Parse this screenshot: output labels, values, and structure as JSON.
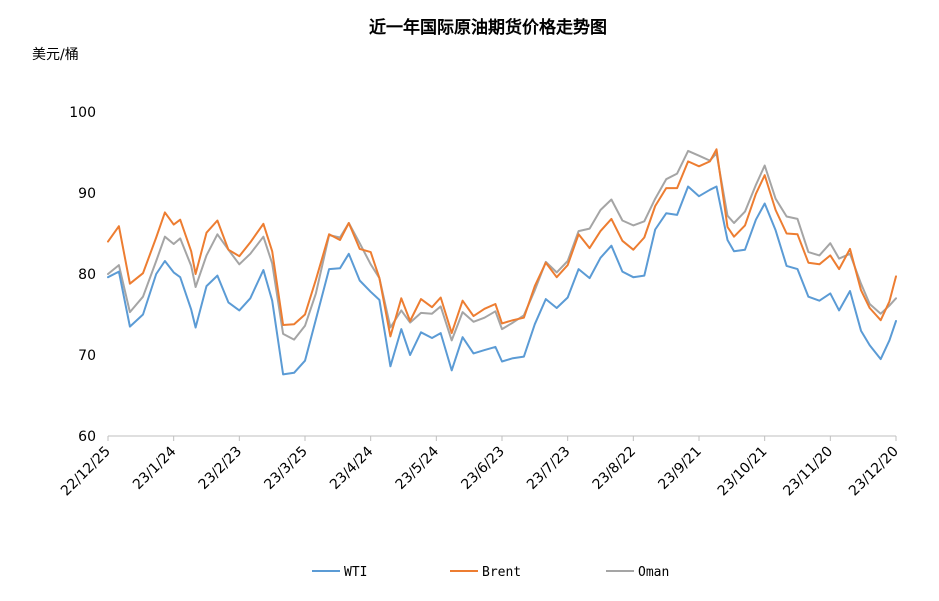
{
  "chart_data": {
    "type": "line",
    "title": "近一年国际原油期货价格走势图",
    "ylabel": "美元/桶",
    "ylim": [
      60,
      100
    ],
    "yticks": [
      60,
      70,
      80,
      90,
      100
    ],
    "x_start": "22/12/25",
    "x_end": "23/12/20",
    "xtick_labels": [
      "22/12/25",
      "23/1/24",
      "23/2/23",
      "23/3/25",
      "23/4/24",
      "23/5/24",
      "23/6/23",
      "23/7/23",
      "23/8/22",
      "23/9/21",
      "23/10/21",
      "23/11/20",
      "23/12/20"
    ],
    "legend_position": "bottom",
    "series": [
      {
        "name": "WTI",
        "color": "#5B9BD5",
        "points": [
          [
            "22/12/25",
            79.6
          ],
          [
            "22/12/30",
            80.3
          ],
          [
            "23/1/4",
            73.5
          ],
          [
            "23/1/10",
            75.0
          ],
          [
            "23/1/16",
            80.0
          ],
          [
            "23/1/20",
            81.6
          ],
          [
            "23/1/24",
            80.2
          ],
          [
            "23/1/27",
            79.6
          ],
          [
            "23/2/1",
            75.6
          ],
          [
            "23/2/3",
            73.4
          ],
          [
            "23/2/8",
            78.5
          ],
          [
            "23/2/13",
            79.8
          ],
          [
            "23/2/18",
            76.5
          ],
          [
            "23/2/23",
            75.5
          ],
          [
            "23/2/28",
            77.0
          ],
          [
            "23/3/6",
            80.5
          ],
          [
            "23/3/10",
            76.7
          ],
          [
            "23/3/15",
            67.6
          ],
          [
            "23/3/20",
            67.8
          ],
          [
            "23/3/25",
            69.3
          ],
          [
            "23/3/30",
            74.4
          ],
          [
            "23/4/5",
            80.6
          ],
          [
            "23/4/10",
            80.7
          ],
          [
            "23/4/14",
            82.5
          ],
          [
            "23/4/19",
            79.2
          ],
          [
            "23/4/24",
            77.8
          ],
          [
            "23/4/28",
            76.8
          ],
          [
            "23/5/3",
            68.6
          ],
          [
            "23/5/8",
            73.2
          ],
          [
            "23/5/12",
            70.0
          ],
          [
            "23/5/17",
            72.8
          ],
          [
            "23/5/22",
            72.1
          ],
          [
            "23/5/26",
            72.7
          ],
          [
            "23/5/31",
            68.1
          ],
          [
            "23/6/5",
            72.2
          ],
          [
            "23/6/10",
            70.2
          ],
          [
            "23/6/15",
            70.6
          ],
          [
            "23/6/20",
            71.0
          ],
          [
            "23/6/23",
            69.2
          ],
          [
            "23/6/28",
            69.6
          ],
          [
            "23/7/3",
            69.8
          ],
          [
            "23/7/8",
            73.8
          ],
          [
            "23/7/13",
            76.9
          ],
          [
            "23/7/18",
            75.8
          ],
          [
            "23/7/23",
            77.1
          ],
          [
            "23/7/28",
            80.6
          ],
          [
            "23/8/2",
            79.5
          ],
          [
            "23/8/7",
            82.0
          ],
          [
            "23/8/12",
            83.5
          ],
          [
            "23/8/17",
            80.3
          ],
          [
            "23/8/22",
            79.6
          ],
          [
            "23/8/27",
            79.8
          ],
          [
            "23/9/1",
            85.5
          ],
          [
            "23/9/6",
            87.5
          ],
          [
            "23/9/11",
            87.3
          ],
          [
            "23/9/16",
            90.8
          ],
          [
            "23/9/21",
            89.6
          ],
          [
            "23/9/26",
            90.4
          ],
          [
            "23/9/29",
            90.8
          ],
          [
            "23/10/4",
            84.2
          ],
          [
            "23/10/7",
            82.8
          ],
          [
            "23/10/12",
            83.0
          ],
          [
            "23/10/17",
            86.7
          ],
          [
            "23/10/21",
            88.7
          ],
          [
            "23/10/26",
            85.4
          ],
          [
            "23/10/31",
            81.0
          ],
          [
            "23/11/5",
            80.6
          ],
          [
            "23/11/10",
            77.2
          ],
          [
            "23/11/15",
            76.7
          ],
          [
            "23/11/20",
            77.6
          ],
          [
            "23/11/24",
            75.5
          ],
          [
            "23/11/29",
            77.9
          ],
          [
            "23/12/4",
            73.0
          ],
          [
            "23/12/8",
            71.2
          ],
          [
            "23/12/13",
            69.5
          ],
          [
            "23/12/17",
            71.8
          ],
          [
            "23/12/20",
            74.2
          ]
        ]
      },
      {
        "name": "Brent",
        "color": "#ED7D31",
        "points": [
          [
            "22/12/25",
            84.0
          ],
          [
            "22/12/30",
            85.9
          ],
          [
            "23/1/4",
            78.8
          ],
          [
            "23/1/10",
            80.1
          ],
          [
            "23/1/16",
            84.5
          ],
          [
            "23/1/20",
            87.6
          ],
          [
            "23/1/24",
            86.1
          ],
          [
            "23/1/27",
            86.7
          ],
          [
            "23/2/1",
            82.8
          ],
          [
            "23/2/3",
            80.0
          ],
          [
            "23/2/8",
            85.1
          ],
          [
            "23/2/13",
            86.6
          ],
          [
            "23/2/18",
            83.0
          ],
          [
            "23/2/23",
            82.2
          ],
          [
            "23/2/28",
            83.9
          ],
          [
            "23/3/6",
            86.2
          ],
          [
            "23/3/10",
            82.8
          ],
          [
            "23/3/15",
            73.7
          ],
          [
            "23/3/20",
            73.8
          ],
          [
            "23/3/25",
            75.0
          ],
          [
            "23/3/30",
            79.3
          ],
          [
            "23/4/5",
            84.9
          ],
          [
            "23/4/10",
            84.2
          ],
          [
            "23/4/14",
            86.3
          ],
          [
            "23/4/19",
            83.1
          ],
          [
            "23/4/24",
            82.7
          ],
          [
            "23/4/28",
            79.5
          ],
          [
            "23/5/3",
            72.3
          ],
          [
            "23/5/8",
            77.0
          ],
          [
            "23/5/12",
            74.2
          ],
          [
            "23/5/17",
            76.9
          ],
          [
            "23/5/22",
            75.9
          ],
          [
            "23/5/26",
            77.1
          ],
          [
            "23/5/31",
            72.7
          ],
          [
            "23/6/5",
            76.7
          ],
          [
            "23/6/10",
            74.8
          ],
          [
            "23/6/15",
            75.7
          ],
          [
            "23/6/20",
            76.3
          ],
          [
            "23/6/23",
            73.9
          ],
          [
            "23/6/28",
            74.3
          ],
          [
            "23/7/3",
            74.6
          ],
          [
            "23/7/8",
            78.5
          ],
          [
            "23/7/13",
            81.4
          ],
          [
            "23/7/18",
            79.6
          ],
          [
            "23/7/23",
            81.1
          ],
          [
            "23/7/28",
            84.9
          ],
          [
            "23/8/2",
            83.2
          ],
          [
            "23/8/7",
            85.3
          ],
          [
            "23/8/12",
            86.8
          ],
          [
            "23/8/17",
            84.1
          ],
          [
            "23/8/22",
            83.0
          ],
          [
            "23/8/27",
            84.5
          ],
          [
            "23/9/1",
            88.4
          ],
          [
            "23/9/6",
            90.6
          ],
          [
            "23/9/11",
            90.6
          ],
          [
            "23/9/16",
            93.9
          ],
          [
            "23/9/21",
            93.3
          ],
          [
            "23/9/26",
            93.9
          ],
          [
            "23/9/29",
            95.4
          ],
          [
            "23/10/4",
            85.8
          ],
          [
            "23/10/7",
            84.6
          ],
          [
            "23/10/12",
            86.0
          ],
          [
            "23/10/17",
            89.9
          ],
          [
            "23/10/21",
            92.2
          ],
          [
            "23/10/26",
            87.9
          ],
          [
            "23/10/31",
            85.0
          ],
          [
            "23/11/5",
            84.9
          ],
          [
            "23/11/10",
            81.4
          ],
          [
            "23/11/15",
            81.2
          ],
          [
            "23/11/20",
            82.3
          ],
          [
            "23/11/24",
            80.6
          ],
          [
            "23/11/29",
            83.1
          ],
          [
            "23/12/4",
            78.0
          ],
          [
            "23/12/8",
            75.8
          ],
          [
            "23/12/13",
            74.3
          ],
          [
            "23/12/17",
            76.6
          ],
          [
            "23/12/20",
            79.7
          ]
        ]
      },
      {
        "name": "Oman",
        "color": "#A5A5A5",
        "points": [
          [
            "22/12/25",
            80.0
          ],
          [
            "22/12/30",
            81.1
          ],
          [
            "23/1/4",
            75.3
          ],
          [
            "23/1/10",
            77.2
          ],
          [
            "23/1/16",
            81.6
          ],
          [
            "23/1/20",
            84.6
          ],
          [
            "23/1/24",
            83.7
          ],
          [
            "23/1/27",
            84.4
          ],
          [
            "23/2/1",
            81.0
          ],
          [
            "23/2/3",
            78.4
          ],
          [
            "23/2/8",
            82.3
          ],
          [
            "23/2/13",
            84.9
          ],
          [
            "23/2/18",
            83.0
          ],
          [
            "23/2/23",
            81.2
          ],
          [
            "23/2/28",
            82.5
          ],
          [
            "23/3/6",
            84.6
          ],
          [
            "23/3/10",
            81.3
          ],
          [
            "23/3/15",
            72.6
          ],
          [
            "23/3/20",
            71.9
          ],
          [
            "23/3/25",
            73.6
          ],
          [
            "23/3/30",
            77.6
          ],
          [
            "23/4/5",
            84.8
          ],
          [
            "23/4/10",
            84.5
          ],
          [
            "23/4/14",
            86.3
          ],
          [
            "23/4/19",
            83.8
          ],
          [
            "23/4/24",
            81.2
          ],
          [
            "23/4/28",
            79.5
          ],
          [
            "23/5/3",
            73.4
          ],
          [
            "23/5/8",
            75.5
          ],
          [
            "23/5/12",
            74.0
          ],
          [
            "23/5/17",
            75.2
          ],
          [
            "23/5/22",
            75.1
          ],
          [
            "23/5/26",
            76.0
          ],
          [
            "23/5/31",
            71.8
          ],
          [
            "23/6/5",
            75.3
          ],
          [
            "23/6/10",
            74.1
          ],
          [
            "23/6/15",
            74.6
          ],
          [
            "23/6/20",
            75.4
          ],
          [
            "23/6/23",
            73.2
          ],
          [
            "23/6/28",
            74.0
          ],
          [
            "23/7/3",
            74.9
          ],
          [
            "23/7/8",
            78.0
          ],
          [
            "23/7/13",
            81.5
          ],
          [
            "23/7/18",
            80.2
          ],
          [
            "23/7/23",
            81.6
          ],
          [
            "23/7/28",
            85.3
          ],
          [
            "23/8/2",
            85.6
          ],
          [
            "23/8/7",
            87.9
          ],
          [
            "23/8/12",
            89.2
          ],
          [
            "23/8/17",
            86.6
          ],
          [
            "23/8/22",
            86.0
          ],
          [
            "23/8/27",
            86.5
          ],
          [
            "23/9/1",
            89.3
          ],
          [
            "23/9/6",
            91.7
          ],
          [
            "23/9/11",
            92.4
          ],
          [
            "23/9/16",
            95.2
          ],
          [
            "23/9/21",
            94.6
          ],
          [
            "23/9/26",
            94.0
          ],
          [
            "23/9/29",
            94.9
          ],
          [
            "23/10/4",
            87.2
          ],
          [
            "23/10/7",
            86.3
          ],
          [
            "23/10/12",
            87.7
          ],
          [
            "23/10/17",
            91.0
          ],
          [
            "23/10/21",
            93.4
          ],
          [
            "23/10/26",
            89.3
          ],
          [
            "23/10/31",
            87.1
          ],
          [
            "23/11/5",
            86.8
          ],
          [
            "23/11/10",
            82.7
          ],
          [
            "23/11/15",
            82.3
          ],
          [
            "23/11/20",
            83.8
          ],
          [
            "23/11/24",
            81.9
          ],
          [
            "23/11/29",
            82.5
          ],
          [
            "23/12/4",
            78.8
          ],
          [
            "23/12/8",
            76.3
          ],
          [
            "23/12/13",
            75.1
          ],
          [
            "23/12/17",
            76.1
          ],
          [
            "23/12/20",
            77.0
          ]
        ]
      }
    ]
  }
}
